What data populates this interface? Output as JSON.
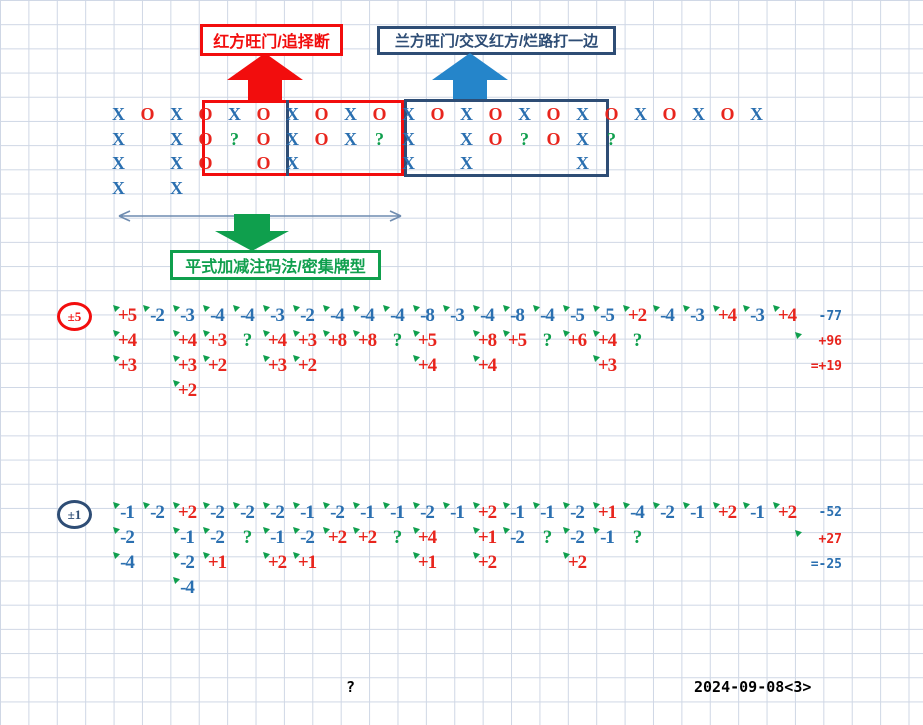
{
  "labels": {
    "red_box_label": "红方旺门/追择断",
    "blue_box_label": "兰方旺门/交叉红方/烂路打一边",
    "green_box_label": "平式加减注码法/密集牌型",
    "bottom_question": "?",
    "date": "2024-09-08<3>"
  },
  "colors": {
    "char_blue": "#2a6fb0",
    "char_red": "#e8251d",
    "green": "#0f9f4d",
    "navy": "#2e4d75",
    "box_red": "#f20d0d",
    "arrow_blue": "#2585ca",
    "grid_line": "#cfd7e5",
    "black": "#000000"
  },
  "xo_grid": {
    "rows": [
      [
        "X",
        "O",
        "X",
        "O",
        "X",
        "O",
        "X",
        "O",
        "X",
        "O",
        "X",
        "O",
        "X",
        "O",
        "X",
        "O",
        "X",
        "O",
        "X",
        "O",
        "X",
        "O",
        "X"
      ],
      [
        "X",
        "",
        "X",
        "O",
        "?",
        "O",
        "X",
        "O",
        "X",
        "?",
        "X",
        "",
        "X",
        "O",
        "?",
        "O",
        "X",
        "?",
        "",
        "",
        "",
        "",
        ""
      ],
      [
        "X",
        "",
        "X",
        "O",
        "",
        "O",
        "X",
        "",
        "",
        "",
        "X",
        "",
        "X",
        "",
        "",
        "",
        "X",
        "",
        "",
        "",
        "",
        "",
        ""
      ],
      [
        "X",
        "",
        "X",
        "",
        "",
        "",
        "",
        "",
        "",
        "",
        "",
        "",
        "",
        "",
        "",
        "",
        "",
        "",
        "",
        "",
        "",
        "",
        ""
      ]
    ]
  },
  "sections": [
    {
      "badge": "±5",
      "rows": [
        [
          "+5",
          "-2",
          "-3",
          "-4",
          "-4",
          "-3",
          "-2",
          "-4",
          "-4",
          "-4",
          "-8",
          "-3",
          "-4",
          "-8",
          "-4",
          "-5",
          "-5",
          "+2",
          "-4",
          "-3",
          "+4",
          "-3",
          "+4"
        ],
        [
          "+4",
          "",
          "+4",
          "+3",
          "?",
          "+4",
          "+3",
          "+8",
          "+8",
          "?",
          "+5",
          "",
          "+8",
          "+5",
          "?",
          "+6",
          "+4",
          "?",
          "",
          "",
          "",
          "",
          ""
        ],
        [
          "+3",
          "",
          "+3",
          "+2",
          "",
          "+3",
          "+2",
          "",
          "",
          "",
          "+4",
          "",
          "+4",
          "",
          "",
          "",
          "+3",
          "",
          "",
          "",
          "",
          "",
          ""
        ],
        [
          "",
          "",
          "+2",
          "",
          "",
          "",
          "",
          "",
          "",
          "",
          "",
          "",
          "",
          "",
          "",
          "",
          "",
          "",
          "",
          "",
          "",
          "",
          ""
        ]
      ],
      "totals": [
        {
          "text": "-77",
          "corner": false
        },
        {
          "text": "+96",
          "corner": true
        },
        {
          "text": "=+19",
          "corner": false
        }
      ]
    },
    {
      "badge": "±1",
      "rows": [
        [
          "-1",
          "-2",
          "+2",
          "-2",
          "-2",
          "-2",
          "-1",
          "-2",
          "-1",
          "-1",
          "-2",
          "-1",
          "+2",
          "-1",
          "-1",
          "-2",
          "+1",
          "-4",
          "-2",
          "-1",
          "+2",
          "-1",
          "+2"
        ],
        [
          "-2",
          "",
          "-1",
          "-2",
          "?",
          "-1",
          "-2",
          "+2",
          "+2",
          "?",
          "+4",
          "",
          "+1",
          "-2",
          "?",
          "-2",
          "-1",
          "?",
          "",
          "",
          "",
          "",
          ""
        ],
        [
          "-4",
          "",
          "-2",
          "+1",
          "",
          "+2",
          "+1",
          "",
          "",
          "",
          "+1",
          "",
          "+2",
          "",
          "",
          "+2",
          "",
          "",
          "",
          "",
          "",
          "",
          ""
        ],
        [
          "",
          "",
          "-4",
          "",
          "",
          "",
          "",
          "",
          "",
          "",
          "",
          "",
          "",
          "",
          "",
          "",
          "",
          "",
          "",
          "",
          "",
          "",
          ""
        ]
      ],
      "totals": [
        {
          "text": "-52",
          "corner": false
        },
        {
          "text": "+27",
          "corner": true
        },
        {
          "text": "=-25",
          "corner": false
        }
      ]
    }
  ]
}
